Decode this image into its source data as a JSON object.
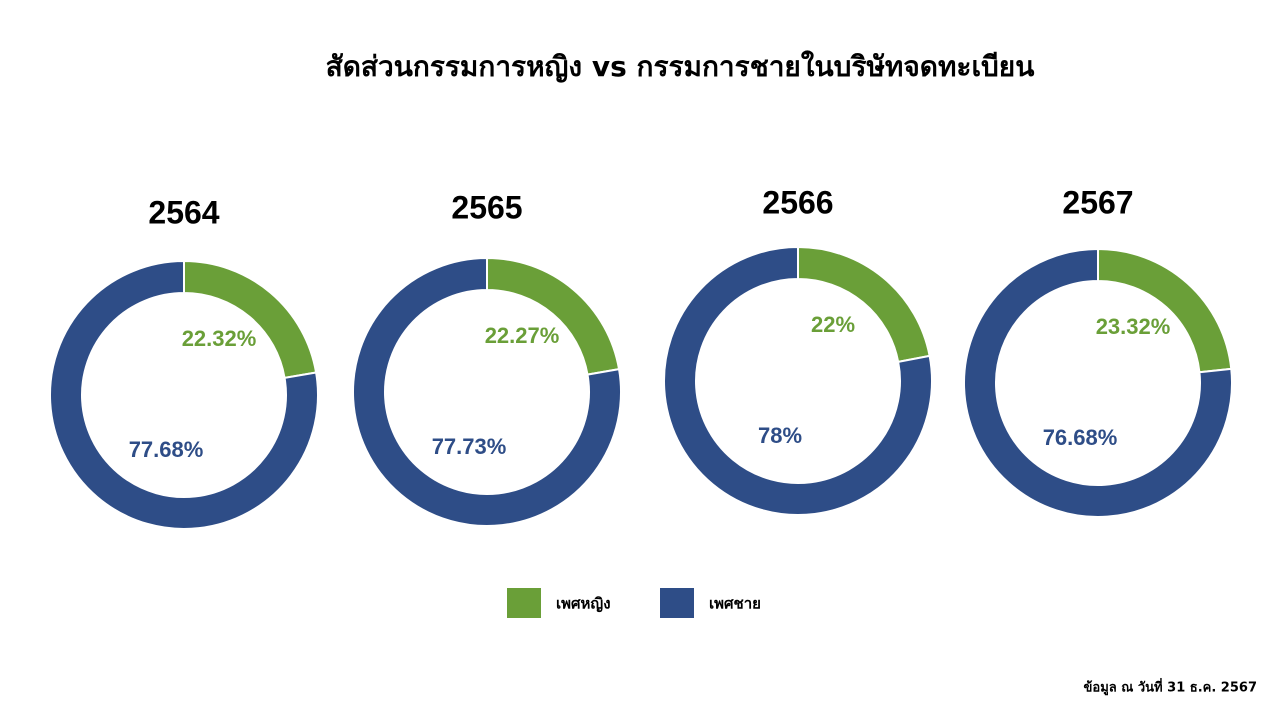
{
  "title": "สัดส่วนกรรมการหญิง vs กรรมการชายในบริษัทจดทะเบียน",
  "chart_data": [
    {
      "type": "donut",
      "title": "2564",
      "categories": [
        "เพศหญิง",
        "เพศชาย"
      ],
      "values": [
        22.32,
        77.68
      ],
      "value_labels": [
        "22.32%",
        "77.68%"
      ],
      "colors": [
        "#6a9f38",
        "#2e4d87"
      ]
    },
    {
      "type": "donut",
      "title": "2565",
      "categories": [
        "เพศหญิง",
        "เพศชาย"
      ],
      "values": [
        22.27,
        77.73
      ],
      "value_labels": [
        "22.27%",
        "77.73%"
      ],
      "colors": [
        "#6a9f38",
        "#2e4d87"
      ]
    },
    {
      "type": "donut",
      "title": "2566",
      "categories": [
        "เพศหญิง",
        "เพศชาย"
      ],
      "values": [
        22,
        78
      ],
      "value_labels": [
        "22%",
        "78%"
      ],
      "colors": [
        "#6a9f38",
        "#2e4d87"
      ]
    },
    {
      "type": "donut",
      "title": "2567",
      "categories": [
        "เพศหญิง",
        "เพศชาย"
      ],
      "values": [
        23.32,
        76.68
      ],
      "value_labels": [
        "23.32%",
        "76.68%"
      ],
      "colors": [
        "#6a9f38",
        "#2e4d87"
      ]
    }
  ],
  "note": "ข้อมูล ณ วันที่ 31 ธ.ค. 2567"
}
